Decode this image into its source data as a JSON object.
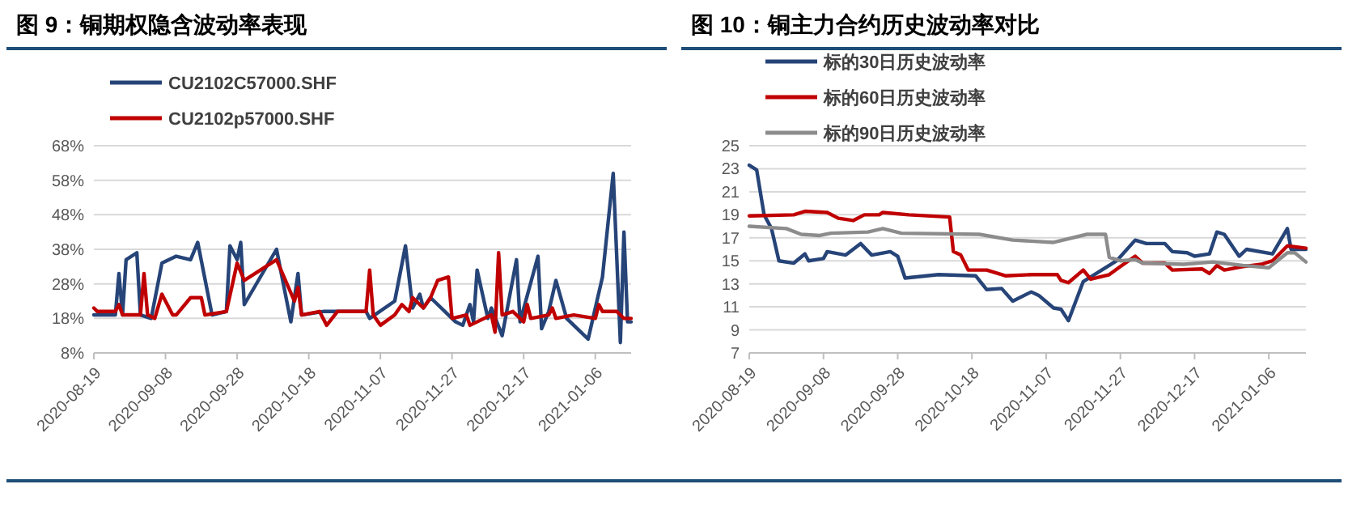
{
  "chart_data": [
    {
      "type": "line",
      "title": "图 9：铜期权隐含波动率表现",
      "legend": "top",
      "grid": "y",
      "xlim": [
        "2020-08-19",
        "2021-01-16"
      ],
      "xticks": [
        "2020-08-19",
        "2020-09-08",
        "2020-09-28",
        "2020-10-18",
        "2020-11-07",
        "2020-11-27",
        "2020-12-17",
        "2021-01-06"
      ],
      "ylim": [
        8,
        68
      ],
      "yticks": [
        {
          "value": 8,
          "label": "8%"
        },
        {
          "value": 18,
          "label": "18%"
        },
        {
          "value": 28,
          "label": "28%"
        },
        {
          "value": 38,
          "label": "38%"
        },
        {
          "value": 48,
          "label": "48%"
        },
        {
          "value": 58,
          "label": "58%"
        },
        {
          "value": 68,
          "label": "68%"
        }
      ],
      "series": [
        {
          "name": "CU2102C57000.SHF",
          "color": "#264478",
          "x": [
            "2020-08-19",
            "2020-08-25",
            "2020-08-26",
            "2020-08-27",
            "2020-08-28",
            "2020-08-31",
            "2020-09-01",
            "2020-09-04",
            "2020-09-07",
            "2020-09-11",
            "2020-09-15",
            "2020-09-17",
            "2020-09-21",
            "2020-09-25",
            "2020-09-26",
            "2020-09-28",
            "2020-09-29",
            "2020-09-30",
            "2020-10-09",
            "2020-10-13",
            "2020-10-15",
            "2020-10-16",
            "2020-10-22",
            "2020-11-03",
            "2020-11-04",
            "2020-11-11",
            "2020-11-14",
            "2020-11-16",
            "2020-11-18",
            "2020-11-19",
            "2020-11-21",
            "2020-11-23",
            "2020-11-26",
            "2020-11-28",
            "2020-11-30",
            "2020-12-02",
            "2020-12-03",
            "2020-12-04",
            "2020-12-07",
            "2020-12-08",
            "2020-12-11",
            "2020-12-15",
            "2020-12-16",
            "2020-12-21",
            "2020-12-22",
            "2020-12-24",
            "2020-12-26",
            "2020-12-29",
            "2021-01-04",
            "2021-01-08",
            "2021-01-11",
            "2021-01-13",
            "2021-01-14",
            "2021-01-15",
            "2021-01-16"
          ],
          "values": [
            19,
            19,
            31,
            19,
            35,
            37,
            19,
            18,
            34,
            36,
            35,
            40,
            19,
            20,
            39,
            35,
            40,
            22,
            38,
            17,
            31,
            19,
            20,
            20,
            18,
            23,
            39,
            21,
            25,
            21,
            24,
            22,
            19,
            17,
            16,
            22,
            17,
            32,
            18,
            21,
            13,
            35,
            17,
            36,
            15,
            20,
            29,
            18,
            12,
            30,
            60,
            11,
            43,
            17,
            17
          ]
        },
        {
          "name": "CU2102p57000.SHF",
          "color": "#c00000",
          "x": [
            "2020-08-19",
            "2020-08-20",
            "2020-08-25",
            "2020-08-26",
            "2020-08-27",
            "2020-09-01",
            "2020-09-02",
            "2020-09-03",
            "2020-09-05",
            "2020-09-07",
            "2020-09-10",
            "2020-09-11",
            "2020-09-15",
            "2020-09-18",
            "2020-09-19",
            "2020-09-25",
            "2020-09-28",
            "2020-09-30",
            "2020-10-09",
            "2020-10-14",
            "2020-10-15",
            "2020-10-16",
            "2020-10-21",
            "2020-10-23",
            "2020-10-26",
            "2020-11-03",
            "2020-11-04",
            "2020-11-05",
            "2020-11-07",
            "2020-11-11",
            "2020-11-13",
            "2020-11-15",
            "2020-11-16",
            "2020-11-19",
            "2020-11-21",
            "2020-11-23",
            "2020-11-26",
            "2020-11-27",
            "2020-12-01",
            "2020-12-02",
            "2020-12-08",
            "2020-12-09",
            "2020-12-10",
            "2020-12-11",
            "2020-12-14",
            "2020-12-17",
            "2020-12-18",
            "2020-12-19",
            "2020-12-24",
            "2020-12-25",
            "2020-12-26",
            "2020-12-31",
            "2021-01-06",
            "2021-01-07",
            "2021-01-08",
            "2021-01-12",
            "2021-01-14",
            "2021-01-16"
          ],
          "values": [
            21,
            20,
            20,
            22,
            19,
            19,
            31,
            19,
            18,
            25,
            19,
            19,
            24,
            24,
            19,
            20,
            34,
            29,
            35,
            23,
            27,
            19,
            20,
            16,
            20,
            20,
            32,
            19,
            16,
            19,
            22,
            20,
            24,
            21,
            24,
            29,
            30,
            18,
            19,
            16,
            19,
            14,
            37,
            19,
            20,
            17,
            22,
            18,
            19,
            21,
            18,
            19,
            18,
            22,
            20,
            20,
            18,
            18
          ]
        }
      ]
    },
    {
      "type": "line",
      "title": "图 10：铜主力合约历史波动率对比",
      "legend": "top",
      "grid": "y",
      "xlim": [
        "2020-08-19",
        "2021-01-16"
      ],
      "xticks": [
        "2020-08-19",
        "2020-09-08",
        "2020-09-28",
        "2020-10-18",
        "2020-11-07",
        "2020-11-27",
        "2020-12-17",
        "2021-01-06"
      ],
      "ylim": [
        7,
        25
      ],
      "yticks": [
        7,
        9,
        11,
        13,
        15,
        17,
        19,
        21,
        23,
        25
      ],
      "series": [
        {
          "name": "标的30日历史波动率",
          "color": "#264478",
          "x": [
            "2020-08-19",
            "2020-08-21",
            "2020-08-23",
            "2020-08-25",
            "2020-08-27",
            "2020-08-31",
            "2020-09-03",
            "2020-09-04",
            "2020-09-08",
            "2020-09-09",
            "2020-09-14",
            "2020-09-18",
            "2020-09-21",
            "2020-09-26",
            "2020-09-28",
            "2020-09-30",
            "2020-10-09",
            "2020-10-19",
            "2020-10-22",
            "2020-10-26",
            "2020-10-29",
            "2020-11-03",
            "2020-11-05",
            "2020-11-09",
            "2020-11-11",
            "2020-11-13",
            "2020-11-17",
            "2020-11-26",
            "2020-12-01",
            "2020-12-04",
            "2020-12-09",
            "2020-12-11",
            "2020-12-15",
            "2020-12-17",
            "2020-12-21",
            "2020-12-23",
            "2020-12-25",
            "2020-12-29",
            "2020-12-31",
            "2021-01-07",
            "2021-01-11",
            "2021-01-12",
            "2021-01-16"
          ],
          "values": [
            23.3,
            22.9,
            19,
            17.8,
            15,
            14.8,
            15.6,
            15,
            15.2,
            15.8,
            15.5,
            16.5,
            15.5,
            15.8,
            15.4,
            13.5,
            13.8,
            13.7,
            12.5,
            12.6,
            11.5,
            12.3,
            12,
            10.9,
            10.8,
            9.8,
            13.2,
            15,
            16.8,
            16.5,
            16.5,
            15.8,
            15.7,
            15.4,
            15.6,
            17.5,
            17.3,
            15.4,
            16,
            15.6,
            17.8,
            16,
            16
          ]
        },
        {
          "name": "标的60日历史波动率",
          "color": "#c00000",
          "x": [
            "2020-08-19",
            "2020-08-31",
            "2020-09-03",
            "2020-09-09",
            "2020-09-12",
            "2020-09-16",
            "2020-09-19",
            "2020-09-23",
            "2020-09-24",
            "2020-10-01",
            "2020-10-12",
            "2020-10-13",
            "2020-10-15",
            "2020-10-17",
            "2020-10-22",
            "2020-10-27",
            "2020-11-03",
            "2020-11-10",
            "2020-11-11",
            "2020-11-13",
            "2020-11-17",
            "2020-11-19",
            "2020-11-24",
            "2020-11-27",
            "2020-12-01",
            "2020-12-03",
            "2020-12-09",
            "2020-12-11",
            "2020-12-19",
            "2020-12-21",
            "2020-12-23",
            "2020-12-25",
            "2020-12-30",
            "2021-01-04",
            "2021-01-07",
            "2021-01-11",
            "2021-01-16"
          ],
          "values": [
            18.9,
            19,
            19.3,
            19.2,
            18.7,
            18.5,
            19,
            19,
            19.2,
            19,
            18.8,
            15.8,
            15.5,
            14.2,
            14.2,
            13.7,
            13.8,
            13.8,
            13.3,
            13.1,
            14.2,
            13.4,
            13.8,
            14.5,
            15.4,
            14.8,
            14.8,
            14.2,
            14.3,
            13.9,
            14.6,
            14.2,
            14.5,
            14.7,
            15,
            16.3,
            16.1
          ]
        },
        {
          "name": "标的90日历史波动率",
          "color": "#8c8c8c",
          "x": [
            "2020-08-19",
            "2020-08-29",
            "2020-09-02",
            "2020-09-07",
            "2020-09-10",
            "2020-09-20",
            "2020-09-24",
            "2020-09-29",
            "2020-10-20",
            "2020-10-29",
            "2020-11-09",
            "2020-11-18",
            "2020-11-23",
            "2020-11-24",
            "2020-11-27",
            "2020-12-01",
            "2020-12-03",
            "2020-12-14",
            "2020-12-22",
            "2020-12-30",
            "2021-01-06",
            "2021-01-11",
            "2021-01-13",
            "2021-01-16"
          ],
          "values": [
            18,
            17.8,
            17.3,
            17.2,
            17.4,
            17.5,
            17.8,
            17.4,
            17.3,
            16.8,
            16.6,
            17.3,
            17.3,
            15.3,
            15,
            15.1,
            14.8,
            14.7,
            14.9,
            14.6,
            14.4,
            15.7,
            15.7,
            14.9
          ]
        }
      ]
    }
  ]
}
